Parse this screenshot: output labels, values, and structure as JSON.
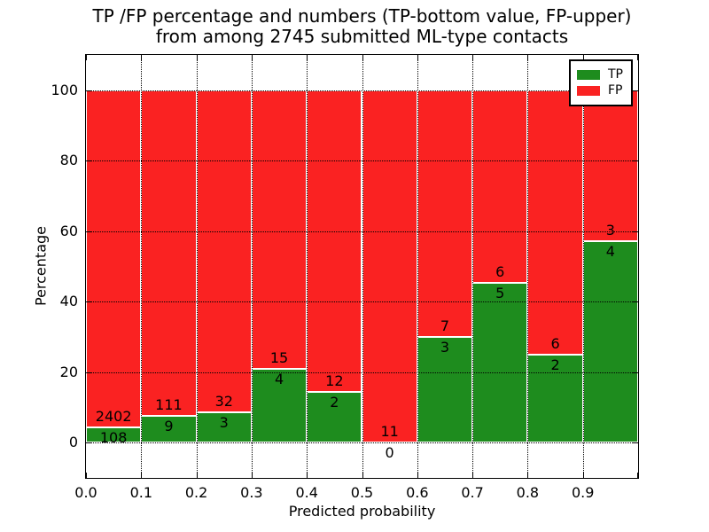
{
  "title": {
    "line1": "TP /FP percentage and numbers (TP-bottom value, FP-upper)",
    "line2": "from among 2745 submitted ML-type contacts"
  },
  "chart_data": {
    "type": "bar",
    "stacked": true,
    "normalized_to_percent": true,
    "title": "TP /FP percentage and numbers (TP-bottom value, FP-upper) from among 2745 submitted ML-type contacts",
    "xlabel": "Predicted probability",
    "ylabel": "Percentage",
    "total_contacts": 2745,
    "bin_edges": [
      0.0,
      0.1,
      0.2,
      0.3,
      0.4,
      0.5,
      0.6,
      0.7,
      0.8,
      0.9,
      1.0
    ],
    "series": [
      {
        "name": "TP",
        "color": "#1e8c1e",
        "counts": [
          108,
          9,
          3,
          4,
          2,
          0,
          3,
          5,
          2,
          4
        ]
      },
      {
        "name": "FP",
        "color": "#fa2222",
        "counts": [
          2402,
          111,
          32,
          15,
          12,
          11,
          7,
          6,
          6,
          3
        ]
      }
    ],
    "tp_percent_per_bin": [
      4.3,
      7.5,
      8.6,
      21.1,
      14.3,
      0.0,
      30.0,
      45.5,
      25.0,
      57.1
    ],
    "xticks": [
      "0.0",
      "0.1",
      "0.2",
      "0.3",
      "0.4",
      "0.5",
      "0.6",
      "0.7",
      "0.8",
      "0.9"
    ],
    "yticks": [
      0,
      20,
      40,
      60,
      80,
      100
    ],
    "xlim": [
      0.0,
      1.0
    ],
    "ylim": [
      -10,
      110
    ],
    "grid": "dotted",
    "legend": {
      "position": "upper right",
      "entries": [
        "TP",
        "FP"
      ]
    }
  },
  "colors": {
    "tp_green": "#1e8c1e",
    "fp_red": "#fa2222",
    "frame": "#000000",
    "background": "#ffffff"
  }
}
